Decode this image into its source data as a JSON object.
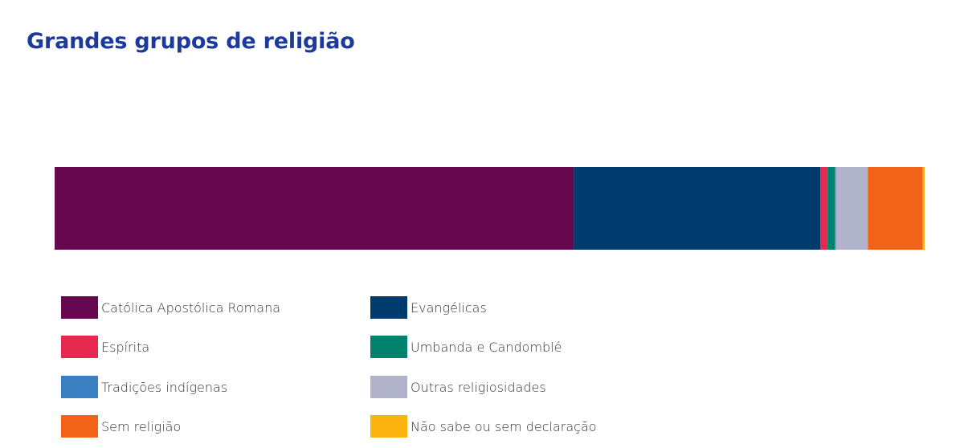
{
  "header": {
    "title": "Grandes grupos de religião"
  },
  "chart_data": {
    "type": "bar",
    "orientation": "horizontal",
    "stacked": true,
    "normalized_percent": true,
    "categories": [
      ""
    ],
    "series": [
      {
        "name": "Católica Apostólica Romana",
        "values": [
          56.7
        ],
        "color": "#650850"
      },
      {
        "name": "Evangélicas",
        "values": [
          26.9
        ],
        "color": "#003b6e"
      },
      {
        "name": "Espírita",
        "values": [
          0.8
        ],
        "color": "#e8294f"
      },
      {
        "name": "Umbanda e Candomblé",
        "values": [
          0.8
        ],
        "color": "#00826e"
      },
      {
        "name": "Tradições indígenas",
        "values": [
          0.1
        ],
        "color": "#3a7fc1"
      },
      {
        "name": "Outras religiosidades",
        "values": [
          3.5
        ],
        "color": "#b1b3ca"
      },
      {
        "name": "Sem religião",
        "values": [
          6.0
        ],
        "color": "#f36317"
      },
      {
        "name": "Não sabe ou sem declaração",
        "values": [
          0.2
        ],
        "color": "#fbb40f"
      }
    ],
    "legend": {
      "placement": "bottom",
      "columns": 2,
      "order": [
        "Católica Apostólica Romana",
        "Evangélicas",
        "Espírita",
        "Umbanda e Candomblé",
        "Tradições indígenas",
        "Outras religiosidades",
        "Sem religião",
        "Não sabe ou sem declaração"
      ]
    },
    "grid": false,
    "axes_visible": false
  }
}
